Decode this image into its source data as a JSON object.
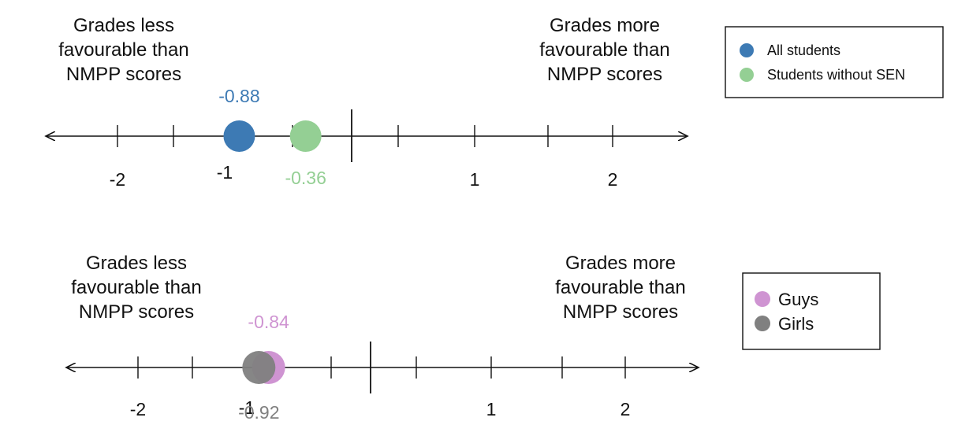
{
  "chart_data": [
    {
      "type": "scatter",
      "title": "",
      "xlabel": "",
      "ylabel": "",
      "xlim": [
        -2.5,
        2.5
      ],
      "x_tick_labels": [
        "-2",
        "-1",
        "1",
        "2"
      ],
      "x_tick_values": [
        -2,
        -1,
        1,
        2
      ],
      "left_annotation": [
        "Grades less",
        "favourable than",
        "NMPP scores"
      ],
      "right_annotation": [
        "Grades more",
        "favourable than",
        "NMPP scores"
      ],
      "legend_position": "top-right",
      "series": [
        {
          "name": "All students",
          "values": [
            -0.88
          ],
          "label": "-0.88",
          "label_position": "above",
          "color": "#3d7ab4"
        },
        {
          "name": "Students without SEN",
          "values": [
            -0.36
          ],
          "label": "-0.36",
          "label_position": "below",
          "color": "#94cf94"
        }
      ]
    },
    {
      "type": "scatter",
      "title": "",
      "xlabel": "",
      "ylabel": "",
      "xlim": [
        -2.5,
        2.5
      ],
      "x_tick_labels": [
        "-2",
        "-1",
        "1",
        "2"
      ],
      "x_tick_values": [
        -2,
        -1,
        1,
        2
      ],
      "left_annotation": [
        "Grades less",
        "favourable than",
        "NMPP scores"
      ],
      "right_annotation": [
        "Grades more",
        "favourable than",
        "NMPP scores"
      ],
      "legend_position": "top-right",
      "series": [
        {
          "name": "Guys",
          "values": [
            -0.84
          ],
          "label": "-0.84",
          "label_position": "above",
          "color": "#cf94d2"
        },
        {
          "name": "Girls",
          "values": [
            -0.92
          ],
          "label": "-0.92",
          "label_position": "below",
          "color": "#808080"
        }
      ]
    }
  ]
}
